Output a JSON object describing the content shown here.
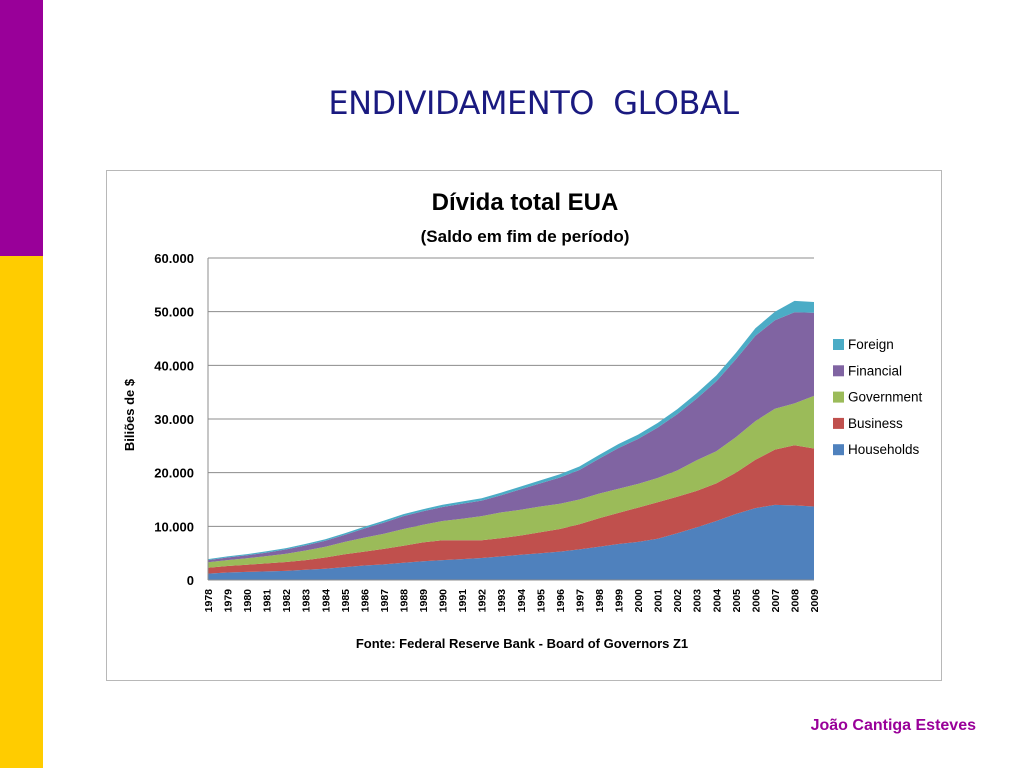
{
  "slide": {
    "title": "ENDIVIDAMENTO  GLOBAL",
    "author": "João Cantiga Esteves",
    "accent_colors": {
      "left_bar_top": "#990099",
      "left_bar_bottom": "#ffcc00",
      "title": "#1a1a80"
    }
  },
  "chart_data": {
    "type": "area",
    "stacked": true,
    "title": "Dívida total EUA",
    "subtitle": "(Saldo em fim de período)",
    "ylabel": "Biliões de $",
    "source": "Fonte: Federal Reserve Bank - Board of Governors Z1",
    "ylim": [
      0,
      60000
    ],
    "yticks": [
      0,
      10000,
      20000,
      30000,
      40000,
      50000,
      60000
    ],
    "ytick_labels": [
      "0",
      "10.000",
      "20.000",
      "30.000",
      "40.000",
      "50.000",
      "60.000"
    ],
    "grid": true,
    "legend_position": "right",
    "categories": [
      "1978",
      "1979",
      "1980",
      "1981",
      "1982",
      "1983",
      "1984",
      "1985",
      "1986",
      "1987",
      "1988",
      "1989",
      "1990",
      "1991",
      "1992",
      "1993",
      "1994",
      "1995",
      "1996",
      "1997",
      "1998",
      "1999",
      "2000",
      "2001",
      "2002",
      "2003",
      "2004",
      "2005",
      "2006",
      "2007",
      "2008",
      "2009"
    ],
    "series": [
      {
        "name": "Households",
        "color": "#4f81bd",
        "values": [
          1200,
          1400,
          1500,
          1600,
          1700,
          1900,
          2100,
          2400,
          2700,
          2900,
          3200,
          3500,
          3700,
          3900,
          4100,
          4400,
          4700,
          5000,
          5300,
          5700,
          6200,
          6700,
          7100,
          7700,
          8700,
          9800,
          11000,
          12300,
          13400,
          14000,
          13900,
          13700
        ]
      },
      {
        "name": "Business",
        "color": "#c0504d",
        "values": [
          1100,
          1200,
          1350,
          1500,
          1650,
          1800,
          2100,
          2400,
          2600,
          2900,
          3200,
          3500,
          3700,
          3500,
          3300,
          3400,
          3600,
          3900,
          4200,
          4700,
          5300,
          5800,
          6400,
          6800,
          6800,
          6800,
          7000,
          7700,
          9000,
          10300,
          11200,
          10800
        ]
      },
      {
        "name": "Government",
        "color": "#9bbb59",
        "values": [
          1000,
          1100,
          1200,
          1350,
          1550,
          1800,
          2000,
          2300,
          2600,
          2800,
          3100,
          3300,
          3600,
          4000,
          4500,
          4800,
          4800,
          4800,
          4700,
          4600,
          4600,
          4500,
          4400,
          4500,
          4900,
          5700,
          6000,
          6600,
          7200,
          7600,
          7800,
          9800
        ]
      },
      {
        "name": "Financial",
        "color": "#8064a2",
        "values": [
          400,
          500,
          550,
          650,
          800,
          950,
          1100,
          1300,
          1700,
          2100,
          2400,
          2500,
          2600,
          2800,
          2900,
          3200,
          3800,
          4300,
          4900,
          5500,
          6500,
          7600,
          8400,
          9400,
          10500,
          11500,
          13000,
          14500,
          15900,
          16500,
          17000,
          15500
        ]
      },
      {
        "name": "Foreign",
        "color": "#4bacc6",
        "values": [
          200,
          200,
          220,
          240,
          250,
          270,
          300,
          320,
          340,
          360,
          380,
          400,
          420,
          430,
          450,
          480,
          520,
          560,
          600,
          640,
          700,
          750,
          800,
          850,
          900,
          1000,
          1100,
          1200,
          1400,
          1600,
          2100,
          2000
        ]
      }
    ]
  }
}
